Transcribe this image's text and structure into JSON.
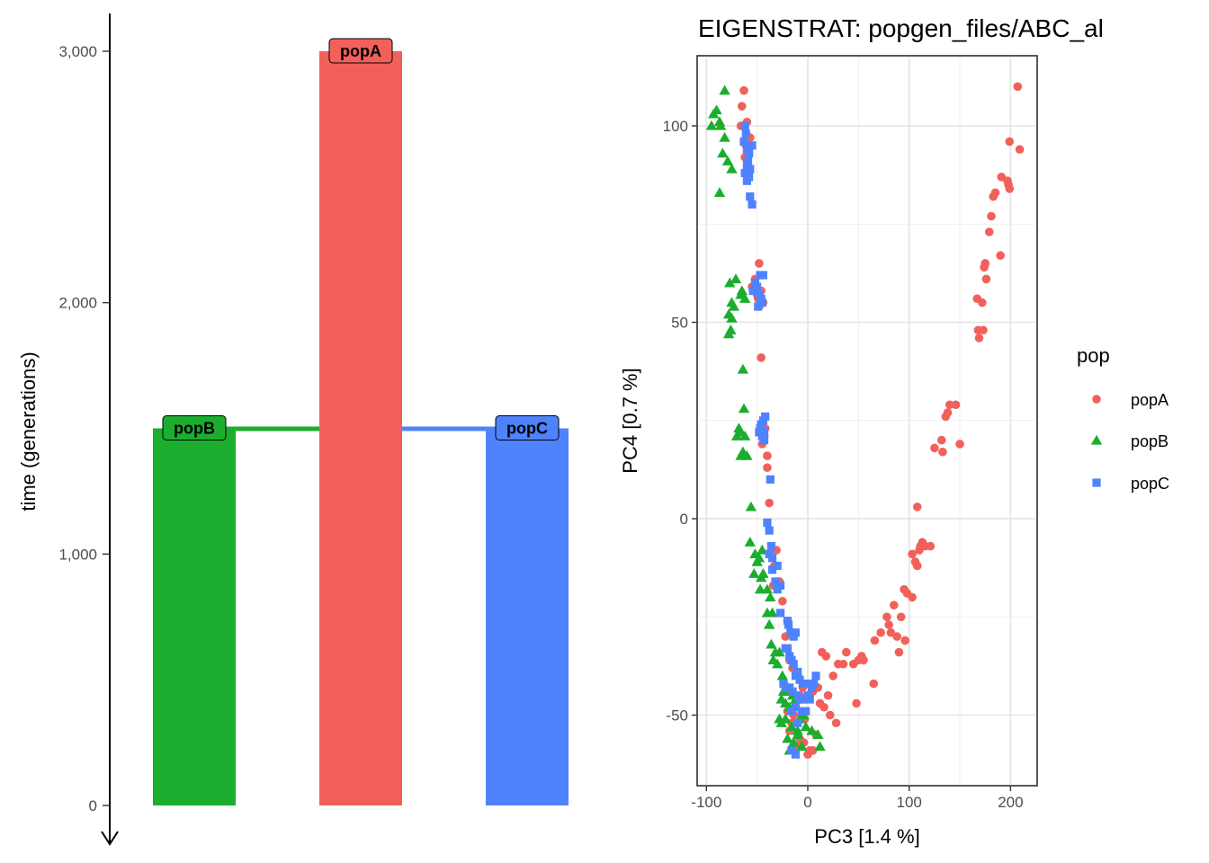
{
  "colors": {
    "popA": "#F2605B",
    "popB": "#1BAE2E",
    "popC": "#4F83FE"
  },
  "chart_data": [
    {
      "type": "bar",
      "ylabel": "time (generations)",
      "ylim": [
        0,
        3000
      ],
      "yticks": [
        0,
        1000,
        2000,
        3000
      ],
      "ytick_labels": [
        "0",
        "1,000",
        "2,000",
        "3,000"
      ],
      "categories": [
        "popB",
        "popA",
        "popC"
      ],
      "values": [
        1500,
        3000,
        1500
      ],
      "splits": [
        {
          "from": "popA",
          "to": "popB",
          "time": 1500
        },
        {
          "from": "popA",
          "to": "popC",
          "time": 1500
        }
      ],
      "axis_direction": "time runs downward (arrow at bottom)"
    },
    {
      "type": "scatter",
      "title": "EIGENSTRAT: popgen_files/ABC_al",
      "xlabel": "PC3 [1.4 %]",
      "ylabel": "PC4 [0.7 %]",
      "xlim": [
        -105,
        222
      ],
      "ylim": [
        -67,
        117
      ],
      "xticks": [
        -100,
        0,
        100,
        200
      ],
      "xtick_labels": [
        "-100",
        "0",
        "100",
        "200"
      ],
      "yticks": [
        -50,
        0,
        50,
        100
      ],
      "ytick_labels": [
        "-50",
        "0",
        "50",
        "100"
      ],
      "grid": true,
      "legend": {
        "title": "pop",
        "position": "right"
      },
      "series": [
        {
          "name": "popA",
          "shape": "circle",
          "points": [
            [
              -63,
              109
            ],
            [
              -65,
              105
            ],
            [
              -60,
              101
            ],
            [
              -66,
              100
            ],
            [
              -57,
              97
            ],
            [
              -61,
              95
            ],
            [
              -62,
              92
            ],
            [
              -58,
              93
            ],
            [
              -48,
              65
            ],
            [
              -52,
              61
            ],
            [
              -55,
              59
            ],
            [
              -46,
              58
            ],
            [
              -50,
              57
            ],
            [
              -49,
              56
            ],
            [
              -44,
              55
            ],
            [
              -48,
              54
            ],
            [
              -46,
              41
            ],
            [
              -42,
              23
            ],
            [
              -43,
              21
            ],
            [
              -45,
              19
            ],
            [
              -40,
              16
            ],
            [
              -40,
              13
            ],
            [
              -38,
              4
            ],
            [
              -31,
              -8
            ],
            [
              -33,
              -12
            ],
            [
              -34,
              -17
            ],
            [
              -28,
              -16
            ],
            [
              -25,
              -21
            ],
            [
              -20,
              -26
            ],
            [
              -22,
              -30
            ],
            [
              -18,
              -36
            ],
            [
              -15,
              -38
            ],
            [
              -10,
              -40
            ],
            [
              -5,
              -43
            ],
            [
              -8,
              -45
            ],
            [
              0,
              -45
            ],
            [
              5,
              -44
            ],
            [
              10,
              -43
            ],
            [
              -12,
              -48
            ],
            [
              -20,
              -49
            ],
            [
              -14,
              -50
            ],
            [
              -16,
              -52
            ],
            [
              -6,
              -50
            ],
            [
              -3,
              -51
            ],
            [
              -18,
              -54
            ],
            [
              -8,
              -56
            ],
            [
              -10,
              -58
            ],
            [
              -4,
              -57
            ],
            [
              0,
              -60
            ],
            [
              2,
              -59
            ],
            [
              5,
              -59
            ],
            [
              8,
              -55
            ],
            [
              12,
              -47
            ],
            [
              16,
              -48
            ],
            [
              20,
              -45
            ],
            [
              22,
              -50
            ],
            [
              28,
              -52
            ],
            [
              30,
              -37
            ],
            [
              14,
              -34
            ],
            [
              18,
              -35
            ],
            [
              25,
              -40
            ],
            [
              35,
              -37
            ],
            [
              38,
              -34
            ],
            [
              45,
              -37
            ],
            [
              50,
              -36
            ],
            [
              53,
              -35
            ],
            [
              55,
              -36
            ],
            [
              48,
              -47
            ],
            [
              65,
              -42
            ],
            [
              66,
              -31
            ],
            [
              72,
              -29
            ],
            [
              78,
              -25
            ],
            [
              80,
              -27
            ],
            [
              82,
              -29
            ],
            [
              85,
              -22
            ],
            [
              88,
              -30
            ],
            [
              92,
              -25
            ],
            [
              95,
              -18
            ],
            [
              98,
              -19
            ],
            [
              103,
              -20
            ],
            [
              90,
              -34
            ],
            [
              96,
              -31
            ],
            [
              103,
              -9
            ],
            [
              106,
              -11
            ],
            [
              108,
              -12
            ],
            [
              110,
              -8
            ],
            [
              111,
              -7
            ],
            [
              113,
              -6
            ],
            [
              116,
              -7
            ],
            [
              121,
              -7
            ],
            [
              108,
              3
            ],
            [
              125,
              18
            ],
            [
              133,
              17
            ],
            [
              132,
              20
            ],
            [
              136,
              26
            ],
            [
              138,
              27
            ],
            [
              140,
              29
            ],
            [
              146,
              29
            ],
            [
              150,
              19
            ],
            [
              167,
              56
            ],
            [
              168,
              48
            ],
            [
              169,
              46
            ],
            [
              173,
              48
            ],
            [
              172,
              55
            ],
            [
              176,
              61
            ],
            [
              174,
              64
            ],
            [
              175,
              65
            ],
            [
              179,
              73
            ],
            [
              181,
              77
            ],
            [
              183,
              82
            ],
            [
              185,
              83
            ],
            [
              191,
              87
            ],
            [
              190,
              67
            ],
            [
              197,
              86
            ],
            [
              198,
              85
            ],
            [
              199,
              84
            ],
            [
              199,
              96
            ],
            [
              207,
              110
            ],
            [
              209,
              94
            ]
          ]
        },
        {
          "name": "popB",
          "shape": "triangle",
          "points": [
            [
              -82,
              109
            ],
            [
              -90,
              104
            ],
            [
              -87,
              101
            ],
            [
              -93,
              103
            ],
            [
              -95,
              100
            ],
            [
              -86,
              100
            ],
            [
              -82,
              97
            ],
            [
              -84,
              93
            ],
            [
              -79,
              91
            ],
            [
              -75,
              89
            ],
            [
              -87,
              83
            ],
            [
              -71,
              61
            ],
            [
              -77,
              60
            ],
            [
              -75,
              55
            ],
            [
              -73,
              54
            ],
            [
              -78,
              52
            ],
            [
              -75,
              51
            ],
            [
              -76,
              48
            ],
            [
              -78,
              47
            ],
            [
              -65,
              58
            ],
            [
              -62,
              56
            ],
            [
              -66,
              57
            ],
            [
              -64,
              38
            ],
            [
              -63,
              28
            ],
            [
              -68,
              23
            ],
            [
              -66,
              22
            ],
            [
              -70,
              21
            ],
            [
              -62,
              21
            ],
            [
              -64,
              17
            ],
            [
              -66,
              16
            ],
            [
              -60,
              16
            ],
            [
              -56,
              3
            ],
            [
              -57,
              -6
            ],
            [
              -52,
              -9
            ],
            [
              -50,
              -11
            ],
            [
              -48,
              -10
            ],
            [
              -45,
              -8
            ],
            [
              -53,
              -14
            ],
            [
              -46,
              -15
            ],
            [
              -44,
              -14
            ],
            [
              -47,
              -18
            ],
            [
              -40,
              -18
            ],
            [
              -37,
              -20
            ],
            [
              -40,
              -24
            ],
            [
              -35,
              -24
            ],
            [
              -38,
              -27
            ],
            [
              -36,
              -32
            ],
            [
              -32,
              -34
            ],
            [
              -34,
              -36
            ],
            [
              -30,
              -37
            ],
            [
              -28,
              -34
            ],
            [
              -25,
              -40
            ],
            [
              -22,
              -42
            ],
            [
              -20,
              -44
            ],
            [
              -24,
              -44
            ],
            [
              -26,
              -46
            ],
            [
              -22,
              -47
            ],
            [
              -15,
              -45
            ],
            [
              -18,
              -48
            ],
            [
              -12,
              -46
            ],
            [
              -28,
              -51
            ],
            [
              -26,
              -52
            ],
            [
              -22,
              -51
            ],
            [
              -20,
              -56
            ],
            [
              -16,
              -53
            ],
            [
              -10,
              -55
            ],
            [
              -8,
              -51
            ],
            [
              -4,
              -50
            ],
            [
              -2,
              -53
            ],
            [
              4,
              -54
            ],
            [
              10,
              -55
            ],
            [
              -14,
              -57
            ],
            [
              -18,
              -59
            ],
            [
              -6,
              -58
            ],
            [
              -10,
              -54
            ],
            [
              12,
              -58
            ]
          ]
        },
        {
          "name": "popC",
          "shape": "square",
          "points": [
            [
              -62,
              100
            ],
            [
              -61,
              98
            ],
            [
              -63,
              96
            ],
            [
              -60,
              94
            ],
            [
              -58,
              93
            ],
            [
              -59,
              91
            ],
            [
              -60,
              90
            ],
            [
              -57,
              89
            ],
            [
              -62,
              88
            ],
            [
              -55,
              95
            ],
            [
              -58,
              87
            ],
            [
              -60,
              86
            ],
            [
              -57,
              82
            ],
            [
              -55,
              80
            ],
            [
              -47,
              62
            ],
            [
              -44,
              62
            ],
            [
              -52,
              60
            ],
            [
              -50,
              59
            ],
            [
              -54,
              58
            ],
            [
              -48,
              57
            ],
            [
              -46,
              56
            ],
            [
              -45,
              55
            ],
            [
              -49,
              54
            ],
            [
              -42,
              26
            ],
            [
              -44,
              25
            ],
            [
              -46,
              24
            ],
            [
              -47,
              23
            ],
            [
              -43,
              22
            ],
            [
              -48,
              22
            ],
            [
              -45,
              21
            ],
            [
              -43,
              20
            ],
            [
              -37,
              10
            ],
            [
              -40,
              -1
            ],
            [
              -38,
              -3
            ],
            [
              -36,
              -7
            ],
            [
              -38,
              -9
            ],
            [
              -35,
              -10
            ],
            [
              -35,
              -13
            ],
            [
              -30,
              -12
            ],
            [
              -32,
              -16
            ],
            [
              -27,
              -17
            ],
            [
              -30,
              -18
            ],
            [
              -27,
              -24
            ],
            [
              -20,
              -26
            ],
            [
              -19,
              -27
            ],
            [
              -17,
              -29
            ],
            [
              -14,
              -30
            ],
            [
              -12,
              -29
            ],
            [
              -20,
              -33
            ],
            [
              -22,
              -33
            ],
            [
              -18,
              -35
            ],
            [
              -16,
              -36
            ],
            [
              -14,
              -37
            ],
            [
              -10,
              -39
            ],
            [
              -12,
              -40
            ],
            [
              -8,
              -41
            ],
            [
              -5,
              -42
            ],
            [
              -2,
              -42
            ],
            [
              4,
              -43
            ],
            [
              8,
              -40
            ],
            [
              6,
              -42
            ],
            [
              -24,
              -42
            ],
            [
              -22,
              -43
            ],
            [
              -18,
              -43
            ],
            [
              -15,
              -44
            ],
            [
              -10,
              -45
            ],
            [
              -8,
              -46
            ],
            [
              -4,
              -46
            ],
            [
              0,
              -45
            ],
            [
              2,
              -46
            ],
            [
              -12,
              -48
            ],
            [
              -16,
              -49
            ],
            [
              -6,
              -49
            ],
            [
              -2,
              -49
            ],
            [
              -10,
              -52
            ],
            [
              -12,
              -60
            ],
            [
              -16,
              -59
            ]
          ]
        }
      ]
    }
  ]
}
